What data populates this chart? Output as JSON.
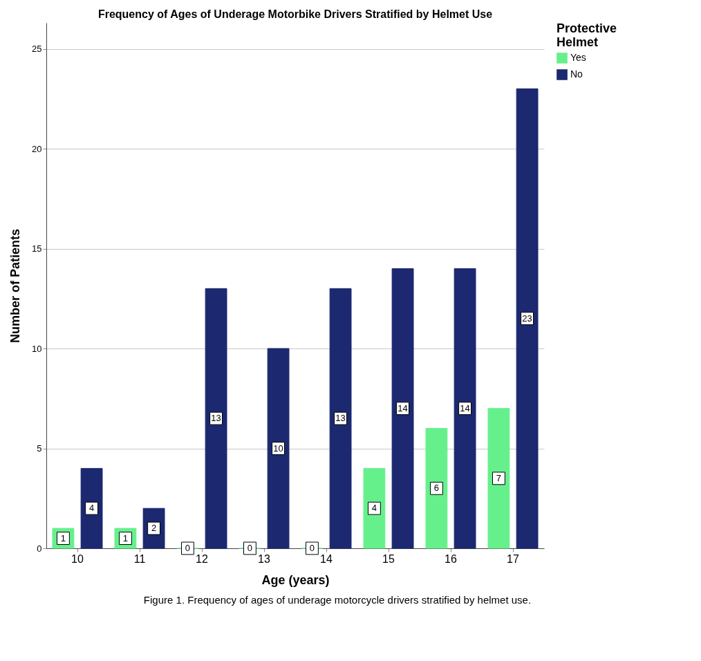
{
  "chart_data": {
    "type": "bar",
    "title": "Frequency of Ages of Underage Motorbike Drivers Stratified by Helmet Use",
    "xlabel": "Age (years)",
    "ylabel": "Number of Patients",
    "legend_title": "Protective Helmet",
    "categories": [
      "10",
      "11",
      "12",
      "13",
      "14",
      "15",
      "16",
      "17"
    ],
    "series": [
      {
        "name": "Yes",
        "color": "#66f08c",
        "values": [
          1,
          1,
          0,
          0,
          0,
          4,
          6,
          7
        ]
      },
      {
        "name": "No",
        "color": "#1c2870",
        "values": [
          4,
          2,
          13,
          10,
          13,
          14,
          14,
          23
        ]
      }
    ],
    "ylim": [
      0,
      26.3
    ],
    "yticks": [
      0,
      5,
      10,
      15,
      20,
      25
    ],
    "grid": "y",
    "legend": "top right",
    "data_labels": true,
    "annotations": [
      "Figure 1.  Frequency of ages of underage motorcycle drivers stratified by helmet use."
    ]
  }
}
